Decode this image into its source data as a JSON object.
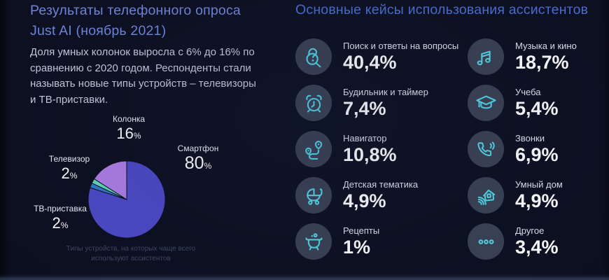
{
  "left": {
    "title": [
      "Результаты телефонного опроса",
      "Just AI (ноябрь 2021)"
    ],
    "paragraph": "Доля умных колонок выросла с 6% до 16% по сравнению с 2020 годом. Респонденты стали называть новые типы устройств – телевизоры и ТВ-приставки."
  },
  "chart_data": [
    {
      "type": "pie",
      "caption": "Типы устройств, на которых чаще всего используют ассистентов",
      "unit": "%",
      "start_angle_deg": 0,
      "direction": "clockwise",
      "legend_position": "around",
      "slices": [
        {
          "label": "Смартфон",
          "value": 80,
          "color": "#4c49c5"
        },
        {
          "label": "ТВ-приставка",
          "value": 2,
          "color": "#2e7cc9"
        },
        {
          "label": "Телевизор",
          "value": 2,
          "color": "#62d9b6"
        },
        {
          "label": "Колонка",
          "value": 16,
          "color": "#ae7de5"
        }
      ]
    },
    {
      "type": "table",
      "title": "Основные кейсы использования ассистентов",
      "items": [
        {
          "icon": "search-question-icon",
          "label": "Поиск и ответы на вопросы",
          "value": 40.4,
          "value_display": "40,4%"
        },
        {
          "icon": "music-note-icon",
          "label": "Музыка и кино",
          "value": 18.7,
          "value_display": "18,7%"
        },
        {
          "icon": "alarm-clock-icon",
          "label": "Будильник и таймер",
          "value": 7.4,
          "value_display": "7,4%"
        },
        {
          "icon": "graduation-cap-icon",
          "label": "Учеба",
          "value": 5.4,
          "value_display": "5,4%"
        },
        {
          "icon": "route-navigator-icon",
          "label": "Навигатор",
          "value": 10.8,
          "value_display": "10,8%"
        },
        {
          "icon": "phone-icon",
          "label": "Звонки",
          "value": 6.9,
          "value_display": "6,9%"
        },
        {
          "icon": "stroller-icon",
          "label": "Детская тематика",
          "value": 4.9,
          "value_display": "4,9%"
        },
        {
          "icon": "smart-home-icon",
          "label": "Умный дом",
          "value": 4.9,
          "value_display": "4,9%"
        },
        {
          "icon": "cauldron-icon",
          "label": "Рецепты",
          "value": 1,
          "value_display": "1%"
        },
        {
          "icon": "ellipsis-icon",
          "label": "Другое",
          "value": 3.4,
          "value_display": "3,4%"
        }
      ]
    }
  ],
  "colors": {
    "background": "#0b0f1f",
    "icon_cyan": "#53d6e8",
    "icon_circle_bg": "#3a4153",
    "left_title": "#7187dd",
    "right_title": "#4a6fd8",
    "paragraph": "#c7cdde",
    "caption_dim": "#3e4765",
    "value_white": "#ffffff"
  }
}
